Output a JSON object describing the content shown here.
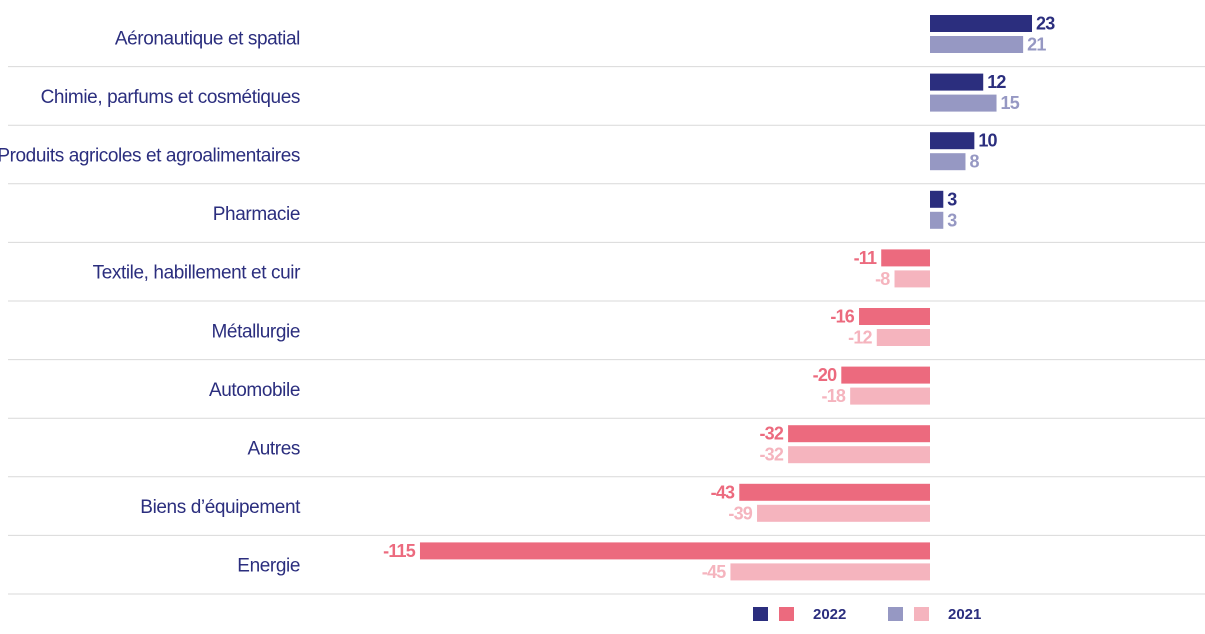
{
  "chart_data": {
    "type": "bar",
    "orientation": "horizontal",
    "categories": [
      "Aéronautique et spatial",
      "Chimie, parfums et cosmétiques",
      "Produits agricoles et agroalimentaires",
      "Pharmacie",
      "Textile, habillement et cuir",
      "Métallurgie",
      "Automobile",
      "Autres",
      "Biens d’équipement",
      "Energie"
    ],
    "series": [
      {
        "name": "2022",
        "values": [
          23,
          12,
          10,
          3,
          -11,
          -16,
          -20,
          -32,
          -43,
          -115
        ]
      },
      {
        "name": "2021",
        "values": [
          21,
          15,
          8,
          3,
          -8,
          -12,
          -18,
          -32,
          -39,
          -45
        ]
      }
    ],
    "xlim": [
      -115,
      28
    ],
    "grid": false,
    "legend_position": "bottom-right"
  },
  "colors": {
    "2022_positive": "#2b2e7e",
    "2021_positive": "#9698c3",
    "2022_negative": "#ec6a7e",
    "2021_negative": "#f5b4be",
    "category_text": "#2b2e7e",
    "separator": "#d9d9d9"
  }
}
